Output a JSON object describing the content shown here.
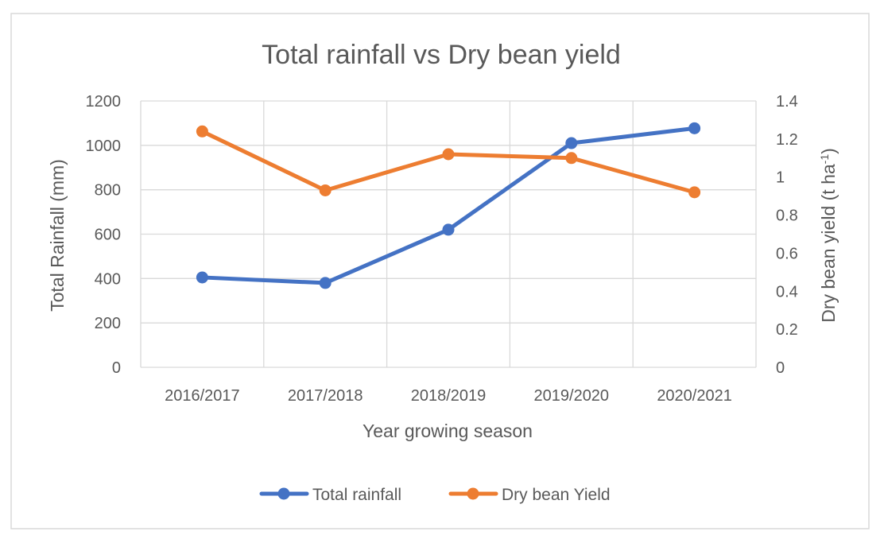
{
  "chart_data": {
    "type": "line",
    "title": "Total rainfall vs Dry bean yield",
    "xlabel": "Year growing season",
    "ylabel": "Total Rainfall (mm)",
    "y2label": "Dry bean yield (t ha-1)",
    "y2label_main": "Dry bean yield (t ha",
    "y2label_sup": "-1",
    "y2label_end": ")",
    "categories": [
      "2016/2017",
      "2017/2018",
      "2018/2019",
      "2019/2020",
      "2020/2021"
    ],
    "ylim": [
      0,
      1200
    ],
    "y_ticks": [
      0,
      200,
      400,
      600,
      800,
      1000,
      1200
    ],
    "y2lim": [
      0,
      1.4
    ],
    "y2_ticks": [
      0,
      0.2,
      0.4,
      0.6,
      0.8,
      1,
      1.2,
      1.4
    ],
    "grid": true,
    "legend_position": "bottom",
    "series": [
      {
        "name": "Total rainfall",
        "axis": "left",
        "color": "#4472C4",
        "values": [
          405,
          380,
          620,
          1010,
          1077
        ]
      },
      {
        "name": "Dry bean Yield",
        "axis": "right",
        "color": "#ED7D31",
        "values": [
          1.24,
          0.93,
          1.12,
          1.1,
          0.92
        ]
      }
    ]
  }
}
